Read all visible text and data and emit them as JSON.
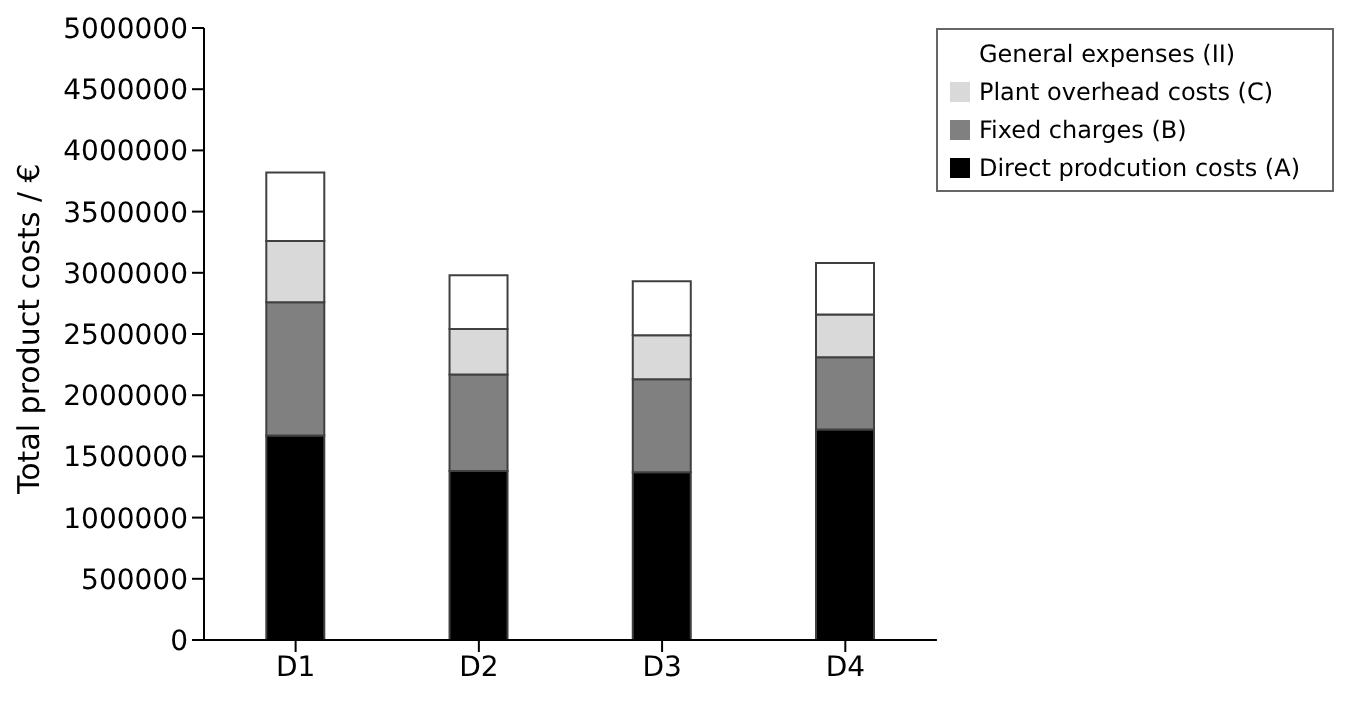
{
  "chart_data": {
    "type": "bar",
    "stacked": true,
    "ylabel": "Total product costs / €",
    "categories": [
      "D1",
      "D2",
      "D3",
      "D4"
    ],
    "series": [
      {
        "name": "Direct prodcution costs (A)",
        "color": "#000000",
        "values": [
          1670000,
          1380000,
          1370000,
          1720000
        ]
      },
      {
        "name": "Fixed charges (B)",
        "color": "#808080",
        "values": [
          1090000,
          790000,
          760000,
          590000
        ]
      },
      {
        "name": "Plant overhead costs (C)",
        "color": "#d9d9d9",
        "values": [
          500000,
          370000,
          360000,
          350000
        ]
      },
      {
        "name": "General expenses (II)",
        "color": "#ffffff",
        "values": [
          560000,
          440000,
          440000,
          420000
        ]
      }
    ],
    "ylim": [
      0,
      5000000
    ],
    "yticks": [
      0,
      500000,
      1000000,
      1500000,
      2000000,
      2500000,
      3000000,
      3500000,
      4000000,
      4500000,
      5000000
    ],
    "grid": false,
    "legend": "top right"
  }
}
